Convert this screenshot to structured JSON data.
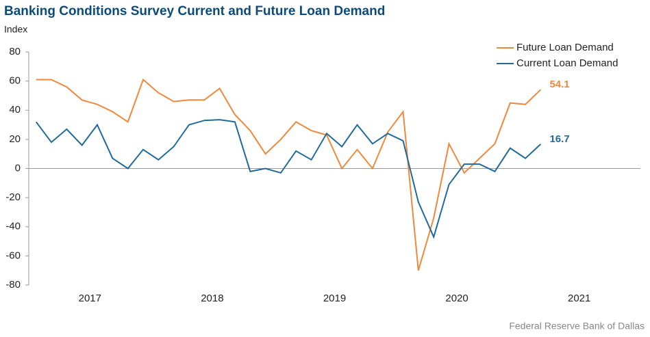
{
  "chart_data": {
    "type": "line",
    "title": "Banking Conditions Survey Current and Future Loan Demand",
    "y_label": "Index",
    "source": "Federal Reserve Bank of Dallas",
    "x": [
      2017.06,
      2017.185,
      2017.31,
      2017.435,
      2017.56,
      2017.685,
      2017.81,
      2017.935,
      2018.06,
      2018.185,
      2018.31,
      2018.435,
      2018.56,
      2018.685,
      2018.81,
      2018.935,
      2019.06,
      2019.185,
      2019.31,
      2019.435,
      2019.56,
      2019.685,
      2019.81,
      2019.935,
      2020.06,
      2020.185,
      2020.31,
      2020.435,
      2020.56,
      2020.685,
      2020.81,
      2020.935,
      2021.06,
      2021.185
    ],
    "series": [
      {
        "name": "Future Loan Demand",
        "color": "#f0873a",
        "values": [
          61,
          61,
          56,
          47,
          44,
          39,
          32,
          61,
          52,
          46,
          47,
          47,
          55,
          37,
          26,
          10,
          20,
          32,
          26,
          23,
          0,
          13,
          0,
          25,
          39,
          -70,
          -34,
          17,
          -3,
          7,
          17,
          45,
          44,
          54.1
        ]
      },
      {
        "name": "Current Loan Demand",
        "color": "#1f6a9a",
        "values": [
          32,
          18,
          27,
          16,
          30,
          7,
          0,
          13,
          6,
          15,
          30,
          33,
          33.5,
          32,
          -2,
          0,
          -3,
          12,
          6,
          24,
          15,
          30,
          17,
          24,
          19,
          -23,
          -47,
          -11,
          3,
          3,
          -2,
          14,
          7,
          16.7
        ]
      }
    ],
    "xlim": [
      2017,
      2022
    ],
    "xticks": [
      {
        "value": 2017.5,
        "label": "2017"
      },
      {
        "value": 2018.5,
        "label": "2018"
      },
      {
        "value": 2019.5,
        "label": "2019"
      },
      {
        "value": 2020.5,
        "label": "2020"
      },
      {
        "value": 2021.5,
        "label": "2021"
      }
    ],
    "ylim": [
      -80,
      80
    ],
    "yticks": [
      -80,
      -60,
      -40,
      -20,
      0,
      20,
      40,
      60,
      80
    ],
    "grid": false,
    "legend": "top-right"
  }
}
